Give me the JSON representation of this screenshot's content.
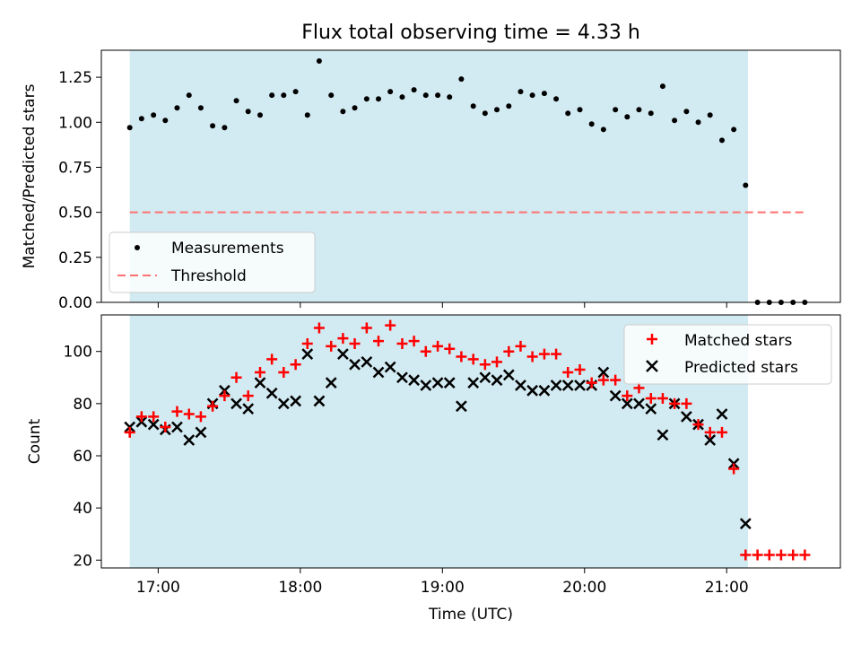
{
  "chart_data": [
    {
      "type": "scatter",
      "title": "Flux total observing time = 4.33 h",
      "xlabel": "",
      "ylabel": "Matched/Predicted stars",
      "xlim": [
        16.6,
        21.8
      ],
      "ylim": [
        0.0,
        1.4
      ],
      "yticks": [
        0.0,
        0.25,
        0.5,
        0.75,
        1.0,
        1.25
      ],
      "ytick_labels": [
        "0.00",
        "0.25",
        "0.50",
        "0.75",
        "1.00",
        "1.25"
      ],
      "shaded_span": [
        16.8,
        21.15
      ],
      "legend_position": "lower-left",
      "series": [
        {
          "name": "Measurements",
          "marker": "dot",
          "color": "#000000",
          "x": [
            16.8,
            16.883,
            16.967,
            17.05,
            17.133,
            17.217,
            17.3,
            17.383,
            17.467,
            17.55,
            17.633,
            17.717,
            17.8,
            17.883,
            17.967,
            18.05,
            18.133,
            18.217,
            18.3,
            18.383,
            18.467,
            18.55,
            18.633,
            18.717,
            18.8,
            18.883,
            18.967,
            19.05,
            19.133,
            19.217,
            19.3,
            19.383,
            19.467,
            19.55,
            19.633,
            19.717,
            19.8,
            19.883,
            19.967,
            20.05,
            20.133,
            20.217,
            20.3,
            20.383,
            20.467,
            20.55,
            20.633,
            20.717,
            20.8,
            20.883,
            20.967,
            21.05,
            21.133,
            21.217,
            21.3,
            21.383,
            21.467,
            21.55
          ],
          "y": [
            0.97,
            1.02,
            1.04,
            1.01,
            1.08,
            1.15,
            1.08,
            0.98,
            0.97,
            1.12,
            1.06,
            1.04,
            1.15,
            1.15,
            1.17,
            1.04,
            1.34,
            1.15,
            1.06,
            1.08,
            1.13,
            1.13,
            1.17,
            1.14,
            1.18,
            1.15,
            1.15,
            1.14,
            1.24,
            1.09,
            1.05,
            1.07,
            1.09,
            1.17,
            1.15,
            1.16,
            1.13,
            1.05,
            1.07,
            0.99,
            0.96,
            1.07,
            1.03,
            1.07,
            1.05,
            1.2,
            1.01,
            1.06,
            1.0,
            1.04,
            0.9,
            0.96,
            0.65,
            0.0,
            0.0,
            0.0,
            0.0,
            0.0
          ]
        },
        {
          "name": "Threshold",
          "marker": "dashed-line",
          "color": "#ff7070",
          "x": [
            16.8,
            21.55
          ],
          "y": [
            0.5,
            0.5
          ]
        }
      ]
    },
    {
      "type": "scatter",
      "title": "",
      "xlabel": "Time (UTC)",
      "ylabel": "Count",
      "xlim": [
        16.6,
        21.8
      ],
      "ylim": [
        17,
        114
      ],
      "xticks": [
        17,
        18,
        19,
        20,
        21
      ],
      "xtick_labels": [
        "17:00",
        "18:00",
        "19:00",
        "20:00",
        "21:00"
      ],
      "yticks": [
        20,
        40,
        60,
        80,
        100
      ],
      "ytick_labels": [
        "20",
        "40",
        "60",
        "80",
        "100"
      ],
      "shaded_span": [
        16.8,
        21.15
      ],
      "legend_position": "upper-right",
      "x": [
        16.8,
        16.883,
        16.967,
        17.05,
        17.133,
        17.217,
        17.3,
        17.383,
        17.467,
        17.55,
        17.633,
        17.717,
        17.8,
        17.883,
        17.967,
        18.05,
        18.133,
        18.217,
        18.3,
        18.383,
        18.467,
        18.55,
        18.633,
        18.717,
        18.8,
        18.883,
        18.967,
        19.05,
        19.133,
        19.217,
        19.3,
        19.383,
        19.467,
        19.55,
        19.633,
        19.717,
        19.8,
        19.883,
        19.967,
        20.05,
        20.133,
        20.217,
        20.3,
        20.383,
        20.467,
        20.55,
        20.633,
        20.717,
        20.8,
        20.883,
        20.967,
        21.05,
        21.133,
        21.217,
        21.3,
        21.383,
        21.467,
        21.55
      ],
      "series": [
        {
          "name": "Matched stars",
          "marker": "plus",
          "color": "#ff0000",
          "values": [
            69,
            75,
            75,
            71,
            77,
            76,
            75,
            79,
            83,
            90,
            83,
            92,
            97,
            92,
            95,
            103,
            109,
            102,
            105,
            103,
            109,
            104,
            110,
            103,
            104,
            100,
            102,
            101,
            98,
            97,
            95,
            96,
            100,
            102,
            98,
            99,
            99,
            92,
            93,
            88,
            89,
            89,
            83,
            86,
            82,
            82,
            80,
            80,
            72,
            69,
            69,
            55,
            22,
            22,
            22,
            22,
            22,
            22
          ]
        },
        {
          "name": "Predicted stars",
          "marker": "x",
          "color": "#000000",
          "values": [
            71,
            73,
            72,
            70,
            71,
            66,
            69,
            80,
            85,
            80,
            78,
            88,
            84,
            80,
            81,
            99,
            81,
            88,
            99,
            95,
            96,
            92,
            94,
            90,
            89,
            87,
            88,
            88,
            79,
            88,
            90,
            89,
            91,
            87,
            85,
            85,
            87,
            87,
            87,
            87,
            92,
            83,
            80,
            80,
            78,
            68,
            80,
            75,
            72,
            66,
            76,
            57,
            34,
            null,
            null,
            null,
            null,
            null
          ]
        }
      ]
    }
  ]
}
